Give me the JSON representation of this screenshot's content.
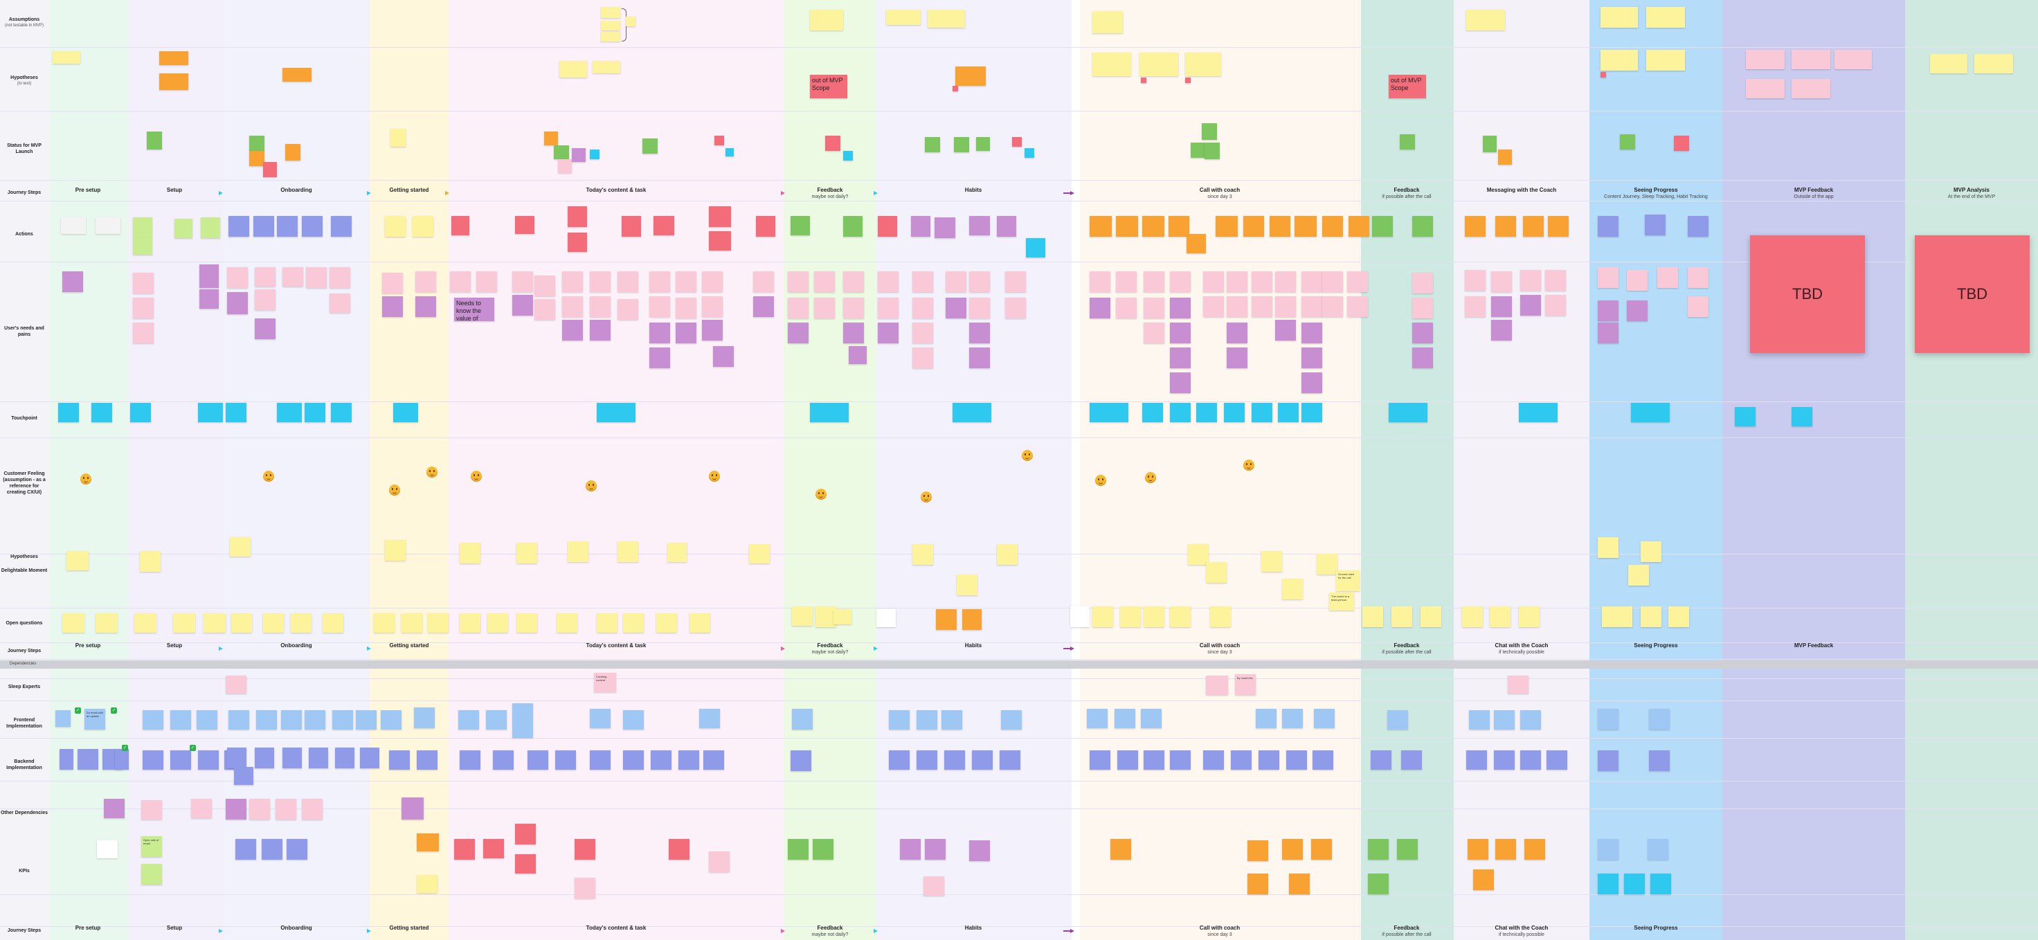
{
  "colors": {
    "yellow": "#fdf39c",
    "orange": "#f7a233",
    "green": "#7dc55e",
    "light_green": "#c8ec8f",
    "pink": "#f9c9d8",
    "purple": "#c78fd1",
    "blue": "#8f9be8",
    "light_blue": "#9fc7f4",
    "cyan": "#2fc9ef",
    "red": "#f26c7a",
    "emoji": "#f6b731"
  },
  "row_labels": [
    {
      "title": "Assumptions",
      "sub": "(not testable in MVP)"
    },
    {
      "title": "Hypotheses",
      "sub": "(to test)"
    },
    {
      "title": "Status for MVP Launch",
      "sub": ""
    },
    {
      "title": "Journey Steps",
      "sub": ""
    },
    {
      "title": "Actions",
      "sub": ""
    },
    {
      "title": "User's needs and pains",
      "sub": ""
    },
    {
      "title": "Touchpoint",
      "sub": ""
    },
    {
      "title": "Customer Feeling (assumption - as a reference for creating CX/UI)",
      "sub": ""
    },
    {
      "title": "Hypotheses",
      "sub": ""
    },
    {
      "title": "Delightable Moment",
      "sub": ""
    },
    {
      "title": "Open questions",
      "sub": ""
    },
    {
      "title": "Journey Steps",
      "sub": ""
    },
    {
      "title": "Sleep Experts",
      "sub": ""
    },
    {
      "title": "Frontend Implementation",
      "sub": ""
    },
    {
      "title": "Backend Implementation",
      "sub": ""
    },
    {
      "title": "Other Dependencies",
      "sub": ""
    },
    {
      "title": "KPIs",
      "sub": ""
    },
    {
      "title": "Journey Steps",
      "sub": ""
    }
  ],
  "dependencies_label": "Dependencies",
  "stages_top": [
    {
      "title": "Pre setup",
      "sub": ""
    },
    {
      "title": "Setup",
      "sub": ""
    },
    {
      "title": "Onboarding",
      "sub": ""
    },
    {
      "title": "Getting started",
      "sub": ""
    },
    {
      "title": "Today's content & task",
      "sub": ""
    },
    {
      "title": "Feedback",
      "sub": "maybe not daily?"
    },
    {
      "title": "Habits",
      "sub": ""
    },
    {
      "title": "Call with coach",
      "sub": "since day 3"
    },
    {
      "title": "Feedback",
      "sub": "if possible after the call"
    },
    {
      "title": "Messaging with the Coach",
      "sub": ""
    },
    {
      "title": "Seeing Progress",
      "sub": "Content Journey, Sleep Tracking, Habit Tracking"
    },
    {
      "title": "MVP Feedback",
      "sub": "Outside of the app"
    },
    {
      "title": "MVP Analysis",
      "sub": "At the end of the MVP"
    }
  ],
  "stages_mid": [
    {
      "title": "Pre setup",
      "sub": ""
    },
    {
      "title": "Setup",
      "sub": ""
    },
    {
      "title": "Onboarding",
      "sub": ""
    },
    {
      "title": "Getting started",
      "sub": ""
    },
    {
      "title": "Today's content & task",
      "sub": ""
    },
    {
      "title": "Feedback",
      "sub": "maybe not daily?"
    },
    {
      "title": "Habits",
      "sub": ""
    },
    {
      "title": "Call with coach",
      "sub": "since day 3"
    },
    {
      "title": "Feedback",
      "sub": "if possible after the call"
    },
    {
      "title": "Chat with the Coach",
      "sub": "if technically possible"
    },
    {
      "title": "Seeing Progress",
      "sub": ""
    },
    {
      "title": "MVP Feedback",
      "sub": ""
    }
  ],
  "stages_bottom": [
    {
      "title": "Pre setup",
      "sub": ""
    },
    {
      "title": "Setup",
      "sub": ""
    },
    {
      "title": "Onboarding",
      "sub": ""
    },
    {
      "title": "Getting started",
      "sub": ""
    },
    {
      "title": "Today's content & task",
      "sub": ""
    },
    {
      "title": "Feedback",
      "sub": "maybe not daily?"
    },
    {
      "title": "Habits",
      "sub": ""
    },
    {
      "title": "Call with coach",
      "sub": "since day 3"
    },
    {
      "title": "Feedback",
      "sub": "if possible after the call"
    },
    {
      "title": "Chat with the Coach",
      "sub": "if technically possible"
    },
    {
      "title": "Seeing Progress",
      "sub": ""
    }
  ],
  "readable_notes": {
    "out_of_mvp_scope_1": "out of MVP Scope",
    "out_of_mvp_scope_2": "out of MVP Scope",
    "tbd_1": "TBD",
    "tbd_2": "TBD",
    "needs_to_know_value": "Needs to know the value of doing the action",
    "so_email_1": "So email with an update",
    "so_email_2": "So email with an update",
    "what_are_we_asking": "What are we asking?",
    "whats_our_login": "What's our login method?",
    "open_email": "Open rate of email",
    "creating_content": "Creating content",
    "ask_to_start": "Ask to start",
    "ground_rules": "Ground rules for the call",
    "call_coach_team": "The coach is a team person",
    "coach_by_hw": "By coach/hw"
  }
}
